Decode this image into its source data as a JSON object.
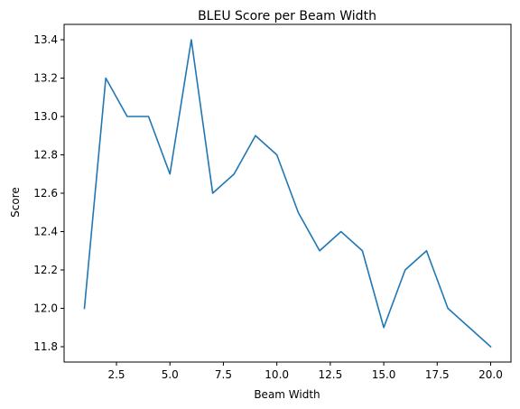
{
  "chart_data": {
    "type": "line",
    "title": "BLEU Score per Beam Width",
    "xlabel": "Beam Width",
    "ylabel": "Score",
    "xlim": [
      0.05,
      20.95
    ],
    "ylim": [
      11.72,
      13.48
    ],
    "x_ticks": [
      2.5,
      5.0,
      7.5,
      10.0,
      12.5,
      15.0,
      17.5,
      20.0
    ],
    "x_tick_labels": [
      "2.5",
      "5.0",
      "7.5",
      "10.0",
      "12.5",
      "15.0",
      "17.5",
      "20.0"
    ],
    "y_ticks": [
      11.8,
      12.0,
      12.2,
      12.4,
      12.6,
      12.8,
      13.0,
      13.2,
      13.4
    ],
    "y_tick_labels": [
      "11.8",
      "12.0",
      "12.2",
      "12.4",
      "12.6",
      "12.8",
      "13.0",
      "13.2",
      "13.4"
    ],
    "grid": false,
    "legend": "none",
    "series": [
      {
        "color": "#1f77b4",
        "x": [
          1,
          2,
          3,
          4,
          5,
          6,
          7,
          8,
          9,
          10,
          11,
          12,
          13,
          14,
          15,
          16,
          17,
          18,
          19,
          20
        ],
        "y": [
          12.0,
          13.2,
          13.0,
          13.0,
          12.7,
          13.4,
          12.6,
          12.7,
          12.9,
          12.8,
          12.5,
          12.3,
          12.4,
          12.3,
          11.9,
          12.2,
          12.3,
          12.0,
          11.9,
          11.8
        ]
      }
    ]
  }
}
